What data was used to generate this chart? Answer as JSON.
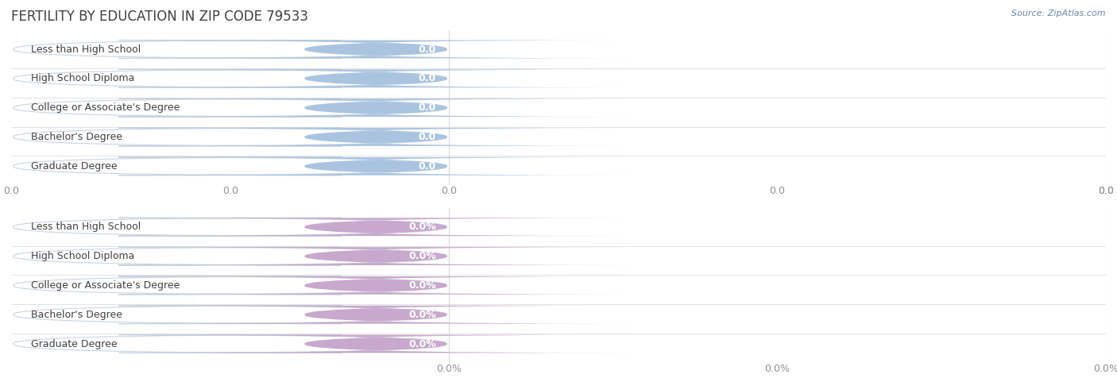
{
  "title": "FERTILITY BY EDUCATION IN ZIP CODE 79533",
  "source": "Source: ZipAtlas.com",
  "categories": [
    "Less than High School",
    "High School Diploma",
    "College or Associate's Degree",
    "Bachelor's Degree",
    "Graduate Degree"
  ],
  "top_values": [
    0.0,
    0.0,
    0.0,
    0.0,
    0.0
  ],
  "bottom_values": [
    0.0,
    0.0,
    0.0,
    0.0,
    0.0
  ],
  "top_bar_color": "#aac4e0",
  "top_bar_bg": "#e8eff8",
  "bottom_bar_color": "#c8a8cc",
  "bottom_bar_bg": "#f0eaf4",
  "background_color": "#ffffff",
  "title_color": "#404040",
  "source_color": "#6888aa",
  "tick_color": "#909090",
  "grid_color": "#d8d8d8",
  "title_fontsize": 12,
  "label_fontsize": 9,
  "value_fontsize": 9,
  "tick_fontsize": 9,
  "source_fontsize": 8,
  "bar_height": 0.62,
  "bar_extent": 0.4,
  "xlim": [
    0,
    1.0
  ],
  "top_xtick_labels": [
    "0.0",
    "0.0",
    "0.0"
  ],
  "bottom_xtick_labels": [
    "0.0%",
    "0.0%",
    "0.0%"
  ],
  "xtick_positions": [
    0.0,
    0.5,
    1.0
  ]
}
